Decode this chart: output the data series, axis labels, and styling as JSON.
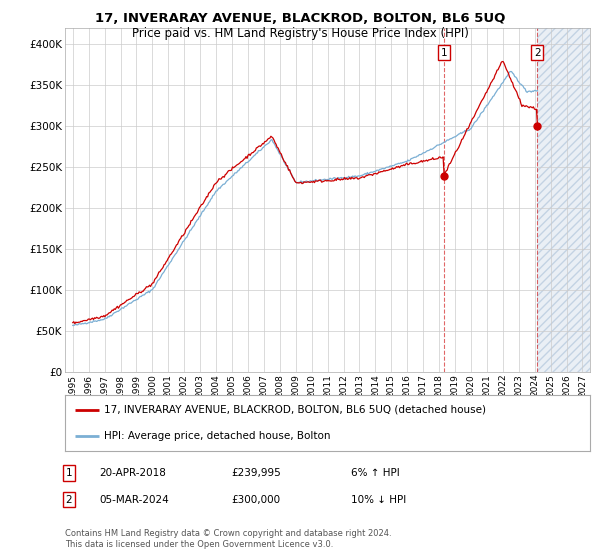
{
  "title": "17, INVERARAY AVENUE, BLACKROD, BOLTON, BL6 5UQ",
  "subtitle": "Price paid vs. HM Land Registry's House Price Index (HPI)",
  "ylim": [
    0,
    420000
  ],
  "yticks": [
    0,
    50000,
    100000,
    150000,
    200000,
    250000,
    300000,
    350000,
    400000
  ],
  "line1_color": "#cc0000",
  "line2_color": "#7bafd4",
  "bg_color": "#ffffff",
  "grid_color": "#cccccc",
  "legend_label1": "17, INVERARAY AVENUE, BLACKROD, BOLTON, BL6 5UQ (detached house)",
  "legend_label2": "HPI: Average price, detached house, Bolton",
  "sale1_date": "20-APR-2018",
  "sale1_price": "£239,995",
  "sale1_pct": "6% ↑ HPI",
  "sale1_year": 2018.3,
  "sale1_value": 239995,
  "sale2_date": "05-MAR-2024",
  "sale2_price": "£300,000",
  "sale2_pct": "10% ↓ HPI",
  "sale2_year": 2024.17,
  "sale2_value": 300000,
  "copyright": "Contains HM Land Registry data © Crown copyright and database right 2024.\nThis data is licensed under the Open Government Licence v3.0.",
  "hatch_start": 2024.17,
  "hatch_end": 2027.5,
  "xlim_left": 1994.5,
  "xlim_right": 2027.5
}
